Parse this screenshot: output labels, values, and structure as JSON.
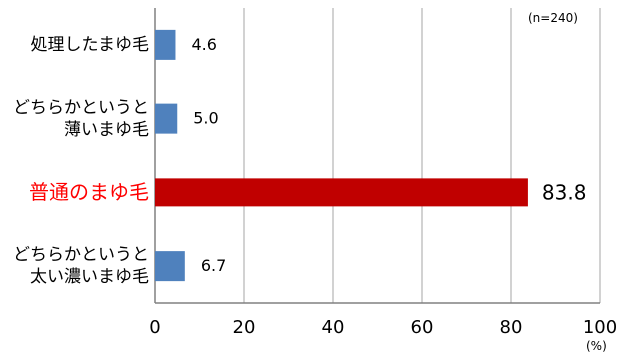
{
  "chart_data": {
    "type": "bar",
    "orientation": "horizontal",
    "categories": [
      "処理したまゆ毛",
      "どちらかというと\n薄いまゆ毛",
      "普通のまゆ毛",
      "どちらかというと\n太い濃いまゆ毛"
    ],
    "values": [
      4.6,
      5.0,
      83.8,
      6.7
    ],
    "value_labels": [
      "4.6",
      "5.0",
      "83.8",
      "6.7"
    ],
    "highlight_index": 2,
    "xlim": [
      0,
      100
    ],
    "xticks": [
      0,
      20,
      40,
      60,
      80,
      100
    ],
    "xtick_labels": [
      "0",
      "20",
      "40",
      "60",
      "80",
      "100"
    ],
    "unit_label": "(%)",
    "sample_note": "(n=240)",
    "grid": true,
    "colors": {
      "bar": "#4f81bd",
      "highlight_bar": "#c00000",
      "highlight_text": "#ff0000",
      "grid": "#a6a6a6"
    }
  }
}
